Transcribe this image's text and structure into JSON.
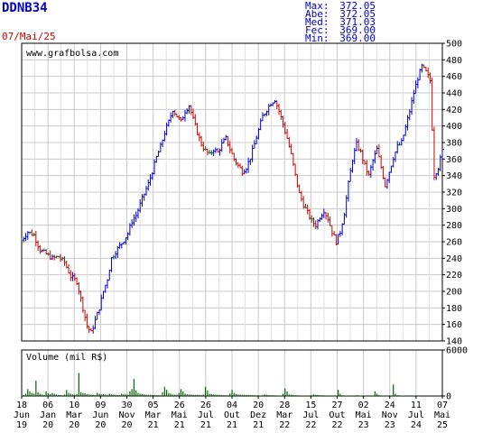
{
  "header": {
    "ticker": "DDNB34",
    "date": "07/Mai/25"
  },
  "stats": [
    {
      "label": "Max:",
      "value": "372.05"
    },
    {
      "label": "Abe:",
      "value": "372.05"
    },
    {
      "label": "Med:",
      "value": "371.03"
    },
    {
      "label": "Fec:",
      "value": "369.00"
    },
    {
      "label": "Min:",
      "value": "369.00"
    }
  ],
  "watermark": "www.grafbolsa.com",
  "colors": {
    "up": "#0000cc",
    "down": "#cc0000",
    "neutral": "#006633",
    "volume": "#006600"
  },
  "chart_data": [
    {
      "type": "bar",
      "subtype": "ohlc-price",
      "ylim": [
        140,
        500
      ],
      "y_ticks": [
        140,
        160,
        180,
        200,
        220,
        240,
        260,
        280,
        300,
        320,
        340,
        360,
        380,
        400,
        420,
        440,
        460,
        480,
        500
      ],
      "x_ticks": [
        {
          "day": "18",
          "mon": "Jun",
          "yr": "19"
        },
        {
          "day": "06",
          "mon": "Jan",
          "yr": "20"
        },
        {
          "day": "10",
          "mon": "Mar",
          "yr": "20"
        },
        {
          "day": "09",
          "mon": "Jun",
          "yr": "20"
        },
        {
          "day": "30",
          "mon": "Nov",
          "yr": "20"
        },
        {
          "day": "05",
          "mon": "Mar",
          "yr": "21"
        },
        {
          "day": "26",
          "mon": "Mai",
          "yr": "21"
        },
        {
          "day": "26",
          "mon": "Jul",
          "yr": "21"
        },
        {
          "day": "04",
          "mon": "Out",
          "yr": "21"
        },
        {
          "day": "20",
          "mon": "Dez",
          "yr": "21"
        },
        {
          "day": "28",
          "mon": "Mar",
          "yr": "22"
        },
        {
          "day": "15",
          "mon": "Jul",
          "yr": "22"
        },
        {
          "day": "27",
          "mon": "Out",
          "yr": "22"
        },
        {
          "day": "02",
          "mon": "Mai",
          "yr": "23"
        },
        {
          "day": "24",
          "mon": "Nov",
          "yr": "23"
        },
        {
          "day": "11",
          "mon": "Jul",
          "yr": "24"
        },
        {
          "day": "07",
          "mon": "Mai",
          "yr": "25"
        }
      ],
      "close": [
        [
          0,
          262
        ],
        [
          3,
          272
        ],
        [
          6,
          268
        ],
        [
          9,
          250
        ],
        [
          12,
          245
        ],
        [
          15,
          240
        ],
        [
          18,
          242
        ],
        [
          21,
          235
        ],
        [
          24,
          218
        ],
        [
          27,
          212
        ],
        [
          30,
          180
        ],
        [
          32,
          158
        ],
        [
          34,
          150
        ],
        [
          36,
          165
        ],
        [
          38,
          180
        ],
        [
          40,
          200
        ],
        [
          42,
          215
        ],
        [
          44,
          240
        ],
        [
          46,
          248
        ],
        [
          48,
          255
        ],
        [
          50,
          262
        ],
        [
          52,
          270
        ],
        [
          54,
          285
        ],
        [
          56,
          292
        ],
        [
          58,
          305
        ],
        [
          60,
          318
        ],
        [
          62,
          330
        ],
        [
          64,
          345
        ],
        [
          66,
          362
        ],
        [
          68,
          375
        ],
        [
          70,
          392
        ],
        [
          72,
          405
        ],
        [
          74,
          420
        ],
        [
          76,
          412
        ],
        [
          78,
          405
        ],
        [
          80,
          418
        ],
        [
          82,
          425
        ],
        [
          84,
          408
        ],
        [
          86,
          392
        ],
        [
          88,
          378
        ],
        [
          90,
          370
        ],
        [
          92,
          365
        ],
        [
          94,
          372
        ],
        [
          96,
          368
        ],
        [
          98,
          378
        ],
        [
          100,
          385
        ],
        [
          102,
          372
        ],
        [
          104,
          360
        ],
        [
          106,
          352
        ],
        [
          108,
          345
        ],
        [
          110,
          350
        ],
        [
          112,
          362
        ],
        [
          114,
          378
        ],
        [
          116,
          395
        ],
        [
          118,
          412
        ],
        [
          120,
          420
        ],
        [
          122,
          428
        ],
        [
          124,
          432
        ],
        [
          126,
          418
        ],
        [
          128,
          402
        ],
        [
          130,
          385
        ],
        [
          132,
          365
        ],
        [
          134,
          340
        ],
        [
          136,
          318
        ],
        [
          138,
          305
        ],
        [
          140,
          295
        ],
        [
          142,
          285
        ],
        [
          144,
          280
        ],
        [
          146,
          290
        ],
        [
          148,
          298
        ],
        [
          150,
          288
        ],
        [
          152,
          272
        ],
        [
          154,
          260
        ],
        [
          156,
          272
        ],
        [
          158,
          295
        ],
        [
          160,
          330
        ],
        [
          162,
          360
        ],
        [
          164,
          378
        ],
        [
          166,
          368
        ],
        [
          168,
          352
        ],
        [
          170,
          340
        ],
        [
          172,
          358
        ],
        [
          174,
          372
        ],
        [
          176,
          350
        ],
        [
          178,
          328
        ],
        [
          180,
          345
        ],
        [
          182,
          362
        ],
        [
          184,
          375
        ],
        [
          186,
          380
        ],
        [
          188,
          398
        ],
        [
          190,
          418
        ],
        [
          192,
          440
        ],
        [
          194,
          458
        ],
        [
          196,
          472
        ],
        [
          198,
          465
        ],
        [
          200,
          455
        ],
        [
          202,
          340
        ],
        [
          204,
          350
        ],
        [
          206,
          370
        ]
      ],
      "n_periods": 206
    },
    {
      "type": "bar",
      "subtype": "volume",
      "title": "Volume (mil R$)",
      "ylim": [
        0,
        6000
      ],
      "y_ticks": [
        0,
        6000
      ],
      "values": [
        200,
        150,
        300,
        900,
        600,
        400,
        300,
        2000,
        500,
        300,
        200,
        150,
        600,
        350,
        250,
        400,
        300,
        200,
        150,
        120,
        100,
        200,
        800,
        400,
        300,
        200,
        150,
        250,
        3000,
        500,
        400,
        350,
        250,
        200,
        180,
        150,
        120,
        400,
        300,
        200,
        250,
        200,
        150,
        300,
        220,
        180,
        160,
        140,
        120,
        300,
        250,
        200,
        180,
        600,
        900,
        2200,
        700,
        400,
        300,
        250,
        200,
        180,
        160,
        150,
        140,
        130,
        120,
        110,
        100,
        500,
        1200,
        800,
        400,
        300,
        200,
        180,
        160,
        400,
        900,
        600,
        300,
        250,
        200,
        180,
        160,
        150,
        140,
        130,
        120,
        200,
        1200,
        700,
        300,
        250,
        200,
        180,
        160,
        140,
        120,
        110,
        100,
        90,
        300,
        800,
        400,
        250,
        200,
        180,
        160,
        150,
        140,
        130,
        120,
        110,
        100,
        90,
        80,
        70,
        100,
        200,
        150,
        120,
        100,
        90,
        80,
        70,
        60,
        50,
        300,
        1000,
        600,
        200,
        150,
        120,
        100,
        90,
        80,
        70,
        60,
        50,
        40,
        30,
        100,
        200,
        150,
        120,
        100,
        90,
        80,
        70,
        60,
        50,
        40,
        30,
        20,
        800,
        300,
        100,
        80,
        60,
        50,
        40,
        30,
        20,
        100,
        80,
        60,
        50,
        40,
        30,
        20,
        20,
        50,
        600,
        300,
        100,
        80,
        60,
        40,
        30,
        20,
        20,
        1500,
        300,
        100,
        80,
        60,
        40,
        30,
        20,
        20,
        20,
        50,
        40,
        30,
        20,
        20,
        20,
        20,
        20,
        20,
        20,
        20,
        20,
        20,
        20
      ]
    }
  ]
}
